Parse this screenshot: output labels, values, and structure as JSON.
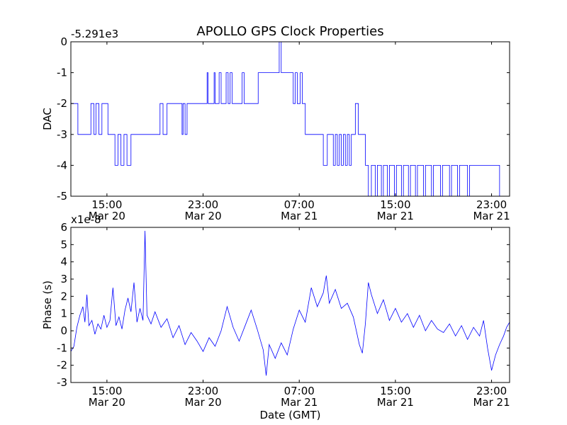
{
  "chart_data": [
    {
      "type": "line",
      "title": "APOLLO GPS Clock Properties",
      "ylabel": "DAC",
      "offset_label": "-5.291e3",
      "xlim": [
        "2012-03-20T12:00",
        "2012-03-22T00:30"
      ],
      "ylim": [
        -5,
        0
      ],
      "yticks": [
        0,
        -1,
        -2,
        -3,
        -4,
        -5
      ],
      "ytick_labels": [
        "0",
        "-1",
        "-2",
        "-3",
        "-4",
        "-5"
      ],
      "xticks": [
        {
          "time": "2012-03-20T15:00",
          "line1": "15:00",
          "line2": "Mar 20"
        },
        {
          "time": "2012-03-20T23:00",
          "line1": "23:00",
          "line2": "Mar 20"
        },
        {
          "time": "2012-03-21T07:00",
          "line1": "07:00",
          "line2": "Mar 21"
        },
        {
          "time": "2012-03-21T15:00",
          "line1": "15:00",
          "line2": "Mar 21"
        },
        {
          "time": "2012-03-21T23:00",
          "line1": "23:00",
          "line2": "Mar 21"
        }
      ],
      "series": [
        {
          "color": "#0000ff",
          "step": true,
          "points": [
            [
              "2012-03-20T12:00",
              -2
            ],
            [
              "2012-03-20T12:35",
              -3
            ],
            [
              "2012-03-20T13:40",
              -2
            ],
            [
              "2012-03-20T13:55",
              -3
            ],
            [
              "2012-03-20T14:05",
              -2
            ],
            [
              "2012-03-20T14:20",
              -3
            ],
            [
              "2012-03-20T14:35",
              -2
            ],
            [
              "2012-03-20T15:05",
              -3
            ],
            [
              "2012-03-20T15:40",
              -4
            ],
            [
              "2012-03-20T15:55",
              -3
            ],
            [
              "2012-03-20T16:10",
              -4
            ],
            [
              "2012-03-20T16:25",
              -3
            ],
            [
              "2012-03-20T16:40",
              -4
            ],
            [
              "2012-03-20T17:00",
              -3
            ],
            [
              "2012-03-20T19:25",
              -2
            ],
            [
              "2012-03-20T19:40",
              -3
            ],
            [
              "2012-03-20T20:00",
              -2
            ],
            [
              "2012-03-20T21:15",
              -3
            ],
            [
              "2012-03-20T21:20",
              -2
            ],
            [
              "2012-03-20T21:30",
              -3
            ],
            [
              "2012-03-20T21:40",
              -2
            ],
            [
              "2012-03-20T22:00",
              -2
            ],
            [
              "2012-03-20T22:10",
              -2
            ],
            [
              "2012-03-20T22:30",
              -2
            ],
            [
              "2012-03-20T22:50",
              -2
            ],
            [
              "2012-03-20T23:20",
              -1
            ],
            [
              "2012-03-20T23:25",
              -2
            ],
            [
              "2012-03-20T23:55",
              -1
            ],
            [
              "2012-03-21T00:00",
              -2
            ],
            [
              "2012-03-21T00:20",
              -1
            ],
            [
              "2012-03-21T00:30",
              -2
            ],
            [
              "2012-03-21T00:55",
              -1
            ],
            [
              "2012-03-21T01:05",
              -2
            ],
            [
              "2012-03-21T01:15",
              -1
            ],
            [
              "2012-03-21T01:25",
              -2
            ],
            [
              "2012-03-21T02:15",
              -1
            ],
            [
              "2012-03-21T02:25",
              -2
            ],
            [
              "2012-03-21T03:35",
              -1
            ],
            [
              "2012-03-21T03:45",
              -1
            ],
            [
              "2012-03-21T05:20",
              0
            ],
            [
              "2012-03-21T05:30",
              -1
            ],
            [
              "2012-03-21T06:30",
              -2
            ],
            [
              "2012-03-21T06:40",
              -1
            ],
            [
              "2012-03-21T06:50",
              -2
            ],
            [
              "2012-03-21T07:05",
              -1
            ],
            [
              "2012-03-21T07:15",
              -2
            ],
            [
              "2012-03-21T07:30",
              -3
            ],
            [
              "2012-03-21T09:00",
              -4
            ],
            [
              "2012-03-21T09:20",
              -3
            ],
            [
              "2012-03-21T09:50",
              -4
            ],
            [
              "2012-03-21T10:00",
              -3
            ],
            [
              "2012-03-21T10:10",
              -4
            ],
            [
              "2012-03-21T10:20",
              -3
            ],
            [
              "2012-03-21T10:30",
              -4
            ],
            [
              "2012-03-21T10:40",
              -3
            ],
            [
              "2012-03-21T10:50",
              -4
            ],
            [
              "2012-03-21T11:00",
              -3
            ],
            [
              "2012-03-21T11:10",
              -4
            ],
            [
              "2012-03-21T11:20",
              -3
            ],
            [
              "2012-03-21T11:40",
              -2
            ],
            [
              "2012-03-21T11:55",
              -3
            ],
            [
              "2012-03-21T12:30",
              -4
            ],
            [
              "2012-03-21T12:45",
              -5
            ],
            [
              "2012-03-21T13:00",
              -4
            ],
            [
              "2012-03-21T13:20",
              -5
            ],
            [
              "2012-03-21T13:30",
              -4
            ],
            [
              "2012-03-21T13:50",
              -5
            ],
            [
              "2012-03-21T14:00",
              -4
            ],
            [
              "2012-03-21T14:20",
              -5
            ],
            [
              "2012-03-21T14:30",
              -4
            ],
            [
              "2012-03-21T14:55",
              -5
            ],
            [
              "2012-03-21T15:05",
              -4
            ],
            [
              "2012-03-21T15:30",
              -5
            ],
            [
              "2012-03-21T15:40",
              -4
            ],
            [
              "2012-03-21T16:05",
              -5
            ],
            [
              "2012-03-21T16:15",
              -4
            ],
            [
              "2012-03-21T16:40",
              -5
            ],
            [
              "2012-03-21T16:50",
              -4
            ],
            [
              "2012-03-21T17:20",
              -5
            ],
            [
              "2012-03-21T17:30",
              -4
            ],
            [
              "2012-03-21T18:00",
              -5
            ],
            [
              "2012-03-21T18:10",
              -4
            ],
            [
              "2012-03-21T18:45",
              -5
            ],
            [
              "2012-03-21T18:55",
              -4
            ],
            [
              "2012-03-21T19:30",
              -5
            ],
            [
              "2012-03-21T19:40",
              -4
            ],
            [
              "2012-03-21T20:10",
              -5
            ],
            [
              "2012-03-21T20:20",
              -4
            ],
            [
              "2012-03-21T21:00",
              -5
            ],
            [
              "2012-03-21T21:10",
              -4
            ],
            [
              "2012-03-21T23:40",
              -5
            ],
            [
              "2012-03-22T00:30",
              -5
            ]
          ]
        }
      ]
    },
    {
      "type": "line",
      "title": "",
      "ylabel": "Phase (s)",
      "xlabel": "Date (GMT)",
      "offset_label": "x1e-8",
      "xlim": [
        "2012-03-20T12:00",
        "2012-03-22T00:30"
      ],
      "ylim": [
        -3,
        6
      ],
      "yticks": [
        6,
        5,
        4,
        3,
        2,
        1,
        0,
        -1,
        -2,
        -3
      ],
      "ytick_labels": [
        "6",
        "5",
        "4",
        "3",
        "2",
        "1",
        "0",
        "-1",
        "-2",
        "-3"
      ],
      "xticks": [
        {
          "time": "2012-03-20T15:00",
          "line1": "15:00",
          "line2": "Mar 20"
        },
        {
          "time": "2012-03-20T23:00",
          "line1": "23:00",
          "line2": "Mar 20"
        },
        {
          "time": "2012-03-21T07:00",
          "line1": "07:00",
          "line2": "Mar 21"
        },
        {
          "time": "2012-03-21T15:00",
          "line1": "15:00",
          "line2": "Mar 21"
        },
        {
          "time": "2012-03-21T23:00",
          "line1": "23:00",
          "line2": "Mar 21"
        }
      ],
      "series": [
        {
          "color": "#0000ff",
          "step": false,
          "points": [
            [
              "2012-03-20T12:00",
              -1.2
            ],
            [
              "2012-03-20T12:15",
              -0.9
            ],
            [
              "2012-03-20T12:30",
              0.2
            ],
            [
              "2012-03-20T12:45",
              0.9
            ],
            [
              "2012-03-20T13:00",
              1.4
            ],
            [
              "2012-03-20T13:10",
              0.5
            ],
            [
              "2012-03-20T13:20",
              2.1
            ],
            [
              "2012-03-20T13:30",
              0.3
            ],
            [
              "2012-03-20T13:45",
              0.6
            ],
            [
              "2012-03-20T14:00",
              -0.2
            ],
            [
              "2012-03-20T14:15",
              0.4
            ],
            [
              "2012-03-20T14:30",
              0.1
            ],
            [
              "2012-03-20T14:45",
              0.9
            ],
            [
              "2012-03-20T15:00",
              0.2
            ],
            [
              "2012-03-20T15:15",
              0.6
            ],
            [
              "2012-03-20T15:30",
              2.5
            ],
            [
              "2012-03-20T15:45",
              0.3
            ],
            [
              "2012-03-20T16:00",
              0.8
            ],
            [
              "2012-03-20T16:15",
              0.1
            ],
            [
              "2012-03-20T16:30",
              1.2
            ],
            [
              "2012-03-20T16:45",
              1.9
            ],
            [
              "2012-03-20T17:00",
              1.1
            ],
            [
              "2012-03-20T17:15",
              2.8
            ],
            [
              "2012-03-20T17:30",
              0.5
            ],
            [
              "2012-03-20T17:45",
              1.3
            ],
            [
              "2012-03-20T18:00",
              0.6
            ],
            [
              "2012-03-20T18:10",
              5.8
            ],
            [
              "2012-03-20T18:20",
              0.9
            ],
            [
              "2012-03-20T18:40",
              0.4
            ],
            [
              "2012-03-20T19:00",
              1.1
            ],
            [
              "2012-03-20T19:30",
              0.2
            ],
            [
              "2012-03-20T20:00",
              0.7
            ],
            [
              "2012-03-20T20:30",
              -0.4
            ],
            [
              "2012-03-20T21:00",
              0.3
            ],
            [
              "2012-03-20T21:30",
              -0.8
            ],
            [
              "2012-03-20T22:00",
              -0.1
            ],
            [
              "2012-03-20T22:30",
              -0.6
            ],
            [
              "2012-03-20T23:00",
              -1.2
            ],
            [
              "2012-03-20T23:30",
              -0.4
            ],
            [
              "2012-03-21T00:00",
              -0.9
            ],
            [
              "2012-03-21T00:30",
              0.0
            ],
            [
              "2012-03-21T01:00",
              1.4
            ],
            [
              "2012-03-21T01:30",
              0.2
            ],
            [
              "2012-03-21T02:00",
              -0.6
            ],
            [
              "2012-03-21T02:30",
              0.3
            ],
            [
              "2012-03-21T03:00",
              1.2
            ],
            [
              "2012-03-21T03:30",
              0.1
            ],
            [
              "2012-03-21T04:00",
              -1.1
            ],
            [
              "2012-03-21T04:15",
              -2.6
            ],
            [
              "2012-03-21T04:30",
              -0.8
            ],
            [
              "2012-03-21T05:00",
              -1.6
            ],
            [
              "2012-03-21T05:30",
              -0.7
            ],
            [
              "2012-03-21T06:00",
              -1.4
            ],
            [
              "2012-03-21T06:30",
              0.1
            ],
            [
              "2012-03-21T07:00",
              1.2
            ],
            [
              "2012-03-21T07:30",
              0.5
            ],
            [
              "2012-03-21T08:00",
              2.5
            ],
            [
              "2012-03-21T08:30",
              1.4
            ],
            [
              "2012-03-21T09:00",
              2.2
            ],
            [
              "2012-03-21T09:15",
              3.2
            ],
            [
              "2012-03-21T09:30",
              1.6
            ],
            [
              "2012-03-21T10:00",
              2.4
            ],
            [
              "2012-03-21T10:30",
              1.3
            ],
            [
              "2012-03-21T11:00",
              1.6
            ],
            [
              "2012-03-21T11:30",
              0.8
            ],
            [
              "2012-03-21T12:00",
              -0.8
            ],
            [
              "2012-03-21T12:15",
              -1.3
            ],
            [
              "2012-03-21T12:30",
              0.4
            ],
            [
              "2012-03-21T12:45",
              2.8
            ],
            [
              "2012-03-21T13:00",
              2.1
            ],
            [
              "2012-03-21T13:30",
              1.0
            ],
            [
              "2012-03-21T14:00",
              1.8
            ],
            [
              "2012-03-21T14:30",
              0.6
            ],
            [
              "2012-03-21T15:00",
              1.3
            ],
            [
              "2012-03-21T15:30",
              0.5
            ],
            [
              "2012-03-21T16:00",
              1.0
            ],
            [
              "2012-03-21T16:30",
              0.2
            ],
            [
              "2012-03-21T17:00",
              0.9
            ],
            [
              "2012-03-21T17:30",
              0.0
            ],
            [
              "2012-03-21T18:00",
              0.6
            ],
            [
              "2012-03-21T18:30",
              0.1
            ],
            [
              "2012-03-21T19:00",
              -0.1
            ],
            [
              "2012-03-21T19:30",
              0.4
            ],
            [
              "2012-03-21T20:00",
              -0.3
            ],
            [
              "2012-03-21T20:30",
              0.3
            ],
            [
              "2012-03-21T21:00",
              -0.5
            ],
            [
              "2012-03-21T21:30",
              0.2
            ],
            [
              "2012-03-21T22:00",
              -0.3
            ],
            [
              "2012-03-21T22:20",
              0.6
            ],
            [
              "2012-03-21T22:40",
              -1.0
            ],
            [
              "2012-03-21T23:00",
              -2.3
            ],
            [
              "2012-03-21T23:20",
              -1.4
            ],
            [
              "2012-03-21T23:40",
              -0.8
            ],
            [
              "2012-03-22T00:00",
              -0.3
            ],
            [
              "2012-03-22T00:15",
              0.2
            ],
            [
              "2012-03-22T00:30",
              0.5
            ]
          ]
        }
      ]
    }
  ]
}
